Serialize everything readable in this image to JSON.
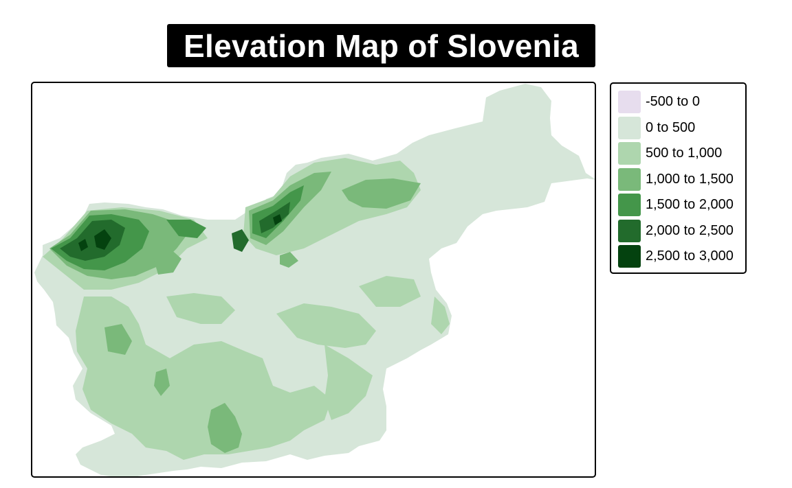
{
  "title": "Elevation Map of Slovenia",
  "legend": {
    "items": [
      {
        "label": "-500 to 0",
        "color": "#e7ddee"
      },
      {
        "label": "0 to 500",
        "color": "#d6e6d9"
      },
      {
        "label": "500 to 1,000",
        "color": "#aed6ae"
      },
      {
        "label": "1,000 to 1,500",
        "color": "#7ab97a"
      },
      {
        "label": "1,500 to 2,000",
        "color": "#44964a"
      },
      {
        "label": "2,000 to 2,500",
        "color": "#226b2c"
      },
      {
        "label": "2,500 to 3,000",
        "color": "#04420f"
      }
    ]
  }
}
